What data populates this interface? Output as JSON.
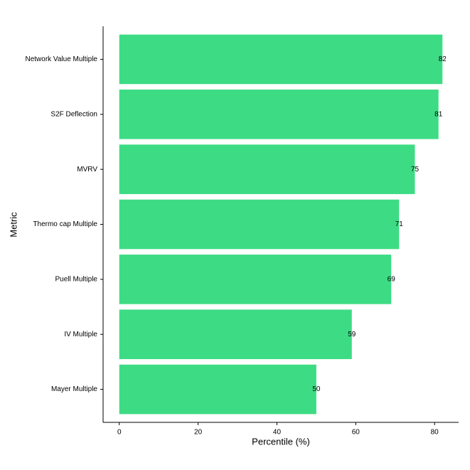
{
  "chart_data": {
    "type": "barh",
    "x_label": "Percentile (%)",
    "y_label": "Metric",
    "categories": [
      "Network Value Multiple",
      "S2F Deflection",
      "MVRV",
      "Thermo cap Multiple",
      "Puell Multiple",
      "IV Multiple",
      "Mayer Multiple"
    ],
    "values": [
      82,
      81,
      75,
      71,
      69,
      59,
      50
    ],
    "color": "#3ddc84",
    "xlim": [
      -4.1,
      86.1
    ],
    "xticks": [
      0,
      20,
      40,
      60,
      80
    ],
    "grid": false
  }
}
